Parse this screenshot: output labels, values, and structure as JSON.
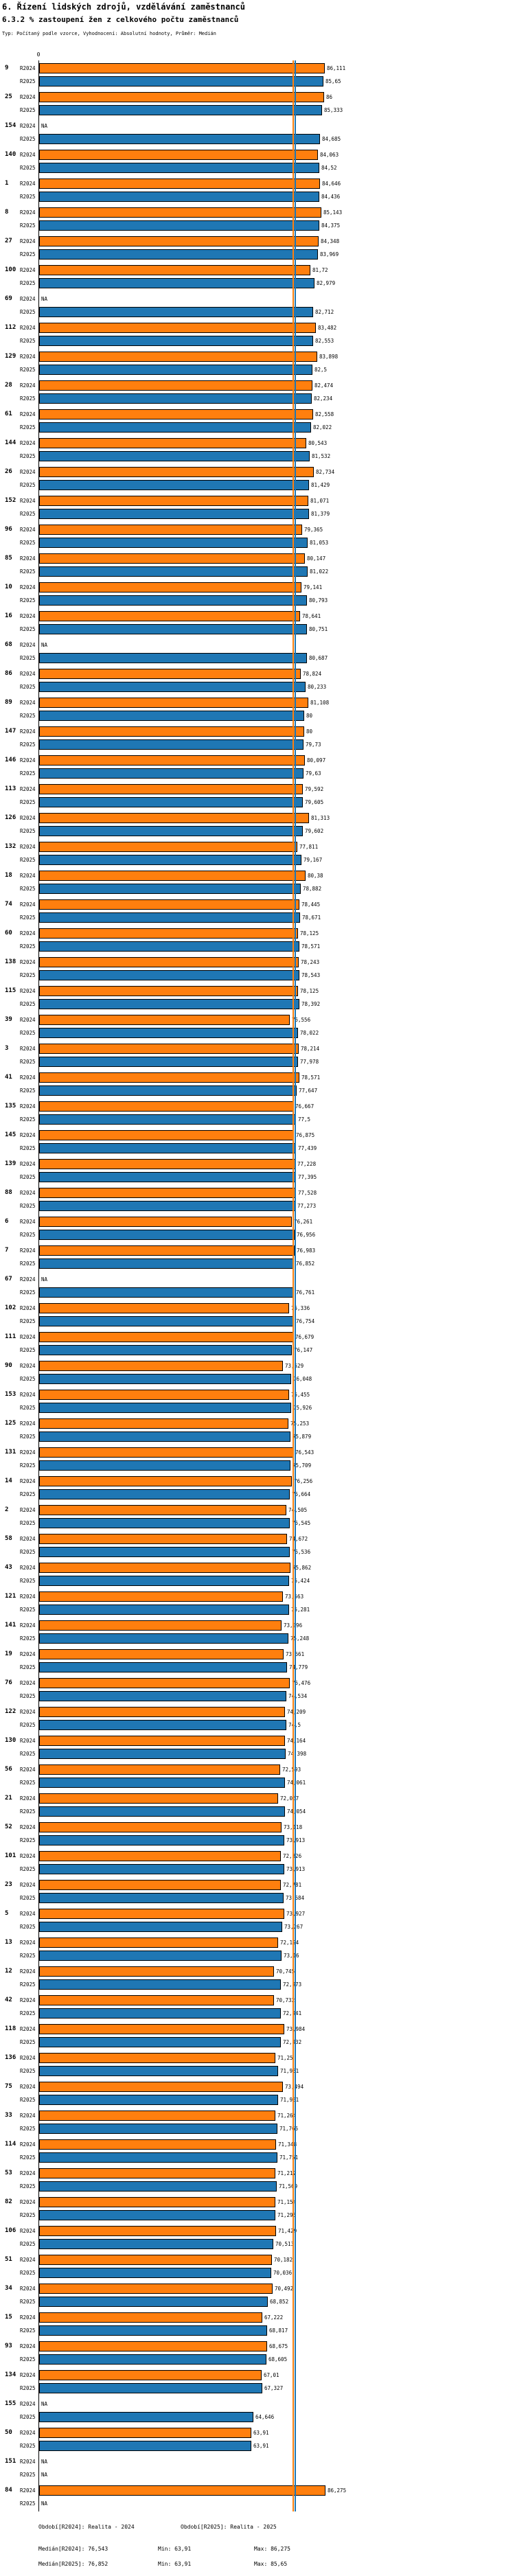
{
  "header": {
    "title": "6. Řízení lidských zdrojů, vzdělávání zaměstnanců",
    "subtitle": "6.3.2 % zastoupení žen z celkového počtu zaměstnanců",
    "meta": "Typ: Počítaný podle vzorce, Vyhodnocení: Absolutní hodnoty, Průměr: Medián"
  },
  "chart_data": {
    "type": "bar",
    "orientation": "horizontal",
    "title": "6.3.2 % zastoupení žen z celkového počtu zaměstnanců",
    "xlabel": "",
    "ylabel": "",
    "xlim": [
      0,
      88
    ],
    "axis_zero_label": "0",
    "na_label": "NA",
    "series_labels": [
      "R2024",
      "R2025"
    ],
    "colors": {
      "R2024": "#ff7f0e",
      "R2025": "#1f77b4"
    },
    "medians": {
      "R2024": 76.543,
      "R2025": 76.852
    },
    "groups": [
      {
        "id": "9",
        "r2024": "86,111",
        "r2025": "85,65"
      },
      {
        "id": "25",
        "r2024": "86",
        "r2025": "85,333"
      },
      {
        "id": "154",
        "r2024": "NA",
        "r2025": "84,685"
      },
      {
        "id": "140",
        "r2024": "84,063",
        "r2025": "84,52"
      },
      {
        "id": "1",
        "r2024": "84,646",
        "r2025": "84,436"
      },
      {
        "id": "8",
        "r2024": "85,143",
        "r2025": "84,375"
      },
      {
        "id": "27",
        "r2024": "84,348",
        "r2025": "83,969"
      },
      {
        "id": "100",
        "r2024": "81,72",
        "r2025": "82,979"
      },
      {
        "id": "69",
        "r2024": "NA",
        "r2025": "82,712"
      },
      {
        "id": "112",
        "r2024": "83,482",
        "r2025": "82,553"
      },
      {
        "id": "129",
        "r2024": "83,898",
        "r2025": "82,5"
      },
      {
        "id": "28",
        "r2024": "82,474",
        "r2025": "82,234"
      },
      {
        "id": "61",
        "r2024": "82,558",
        "r2025": "82,022"
      },
      {
        "id": "144",
        "r2024": "80,543",
        "r2025": "81,532"
      },
      {
        "id": "26",
        "r2024": "82,734",
        "r2025": "81,429"
      },
      {
        "id": "152",
        "r2024": "81,071",
        "r2025": "81,379"
      },
      {
        "id": "96",
        "r2024": "79,365",
        "r2025": "81,053"
      },
      {
        "id": "85",
        "r2024": "80,147",
        "r2025": "81,022"
      },
      {
        "id": "10",
        "r2024": "79,141",
        "r2025": "80,793"
      },
      {
        "id": "16",
        "r2024": "78,641",
        "r2025": "80,751"
      },
      {
        "id": "68",
        "r2024": "NA",
        "r2025": "80,687"
      },
      {
        "id": "86",
        "r2024": "78,824",
        "r2025": "80,233"
      },
      {
        "id": "89",
        "r2024": "81,108",
        "r2025": "80"
      },
      {
        "id": "147",
        "r2024": "80",
        "r2025": "79,73"
      },
      {
        "id": "146",
        "r2024": "80,097",
        "r2025": "79,63"
      },
      {
        "id": "113",
        "r2024": "79,592",
        "r2025": "79,605"
      },
      {
        "id": "126",
        "r2024": "81,313",
        "r2025": "79,602"
      },
      {
        "id": "132",
        "r2024": "77,811",
        "r2025": "79,167"
      },
      {
        "id": "18",
        "r2024": "80,38",
        "r2025": "78,882"
      },
      {
        "id": "74",
        "r2024": "78,445",
        "r2025": "78,671"
      },
      {
        "id": "60",
        "r2024": "78,125",
        "r2025": "78,571"
      },
      {
        "id": "138",
        "r2024": "78,243",
        "r2025": "78,543"
      },
      {
        "id": "115",
        "r2024": "78,125",
        "r2025": "78,392"
      },
      {
        "id": "39",
        "r2024": "75,556",
        "r2025": "78,022"
      },
      {
        "id": "3",
        "r2024": "78,214",
        "r2025": "77,978"
      },
      {
        "id": "41",
        "r2024": "78,571",
        "r2025": "77,647"
      },
      {
        "id": "135",
        "r2024": "76,667",
        "r2025": "77,5"
      },
      {
        "id": "145",
        "r2024": "76,875",
        "r2025": "77,439"
      },
      {
        "id": "139",
        "r2024": "77,228",
        "r2025": "77,395"
      },
      {
        "id": "88",
        "r2024": "77,528",
        "r2025": "77,273"
      },
      {
        "id": "6",
        "r2024": "76,261",
        "r2025": "76,956"
      },
      {
        "id": "7",
        "r2024": "76,983",
        "r2025": "76,852"
      },
      {
        "id": "67",
        "r2024": "NA",
        "r2025": "76,761"
      },
      {
        "id": "102",
        "r2024": "75,336",
        "r2025": "76,754"
      },
      {
        "id": "111",
        "r2024": "76,679",
        "r2025": "76,147"
      },
      {
        "id": "90",
        "r2024": "73,529",
        "r2025": "76,048"
      },
      {
        "id": "153",
        "r2024": "75,455",
        "r2025": "75,926"
      },
      {
        "id": "125",
        "r2024": "75,253",
        "r2025": "75,879"
      },
      {
        "id": "131",
        "r2024": "76,543",
        "r2025": "75,709"
      },
      {
        "id": "14",
        "r2024": "76,256",
        "r2025": "75,664"
      },
      {
        "id": "2",
        "r2024": "74,505",
        "r2025": "75,545"
      },
      {
        "id": "58",
        "r2024": "74,672",
        "r2025": "75,536"
      },
      {
        "id": "43",
        "r2024": "75,862",
        "r2025": "75,424"
      },
      {
        "id": "121",
        "r2024": "73,563",
        "r2025": "75,281"
      },
      {
        "id": "141",
        "r2024": "73,096",
        "r2025": "75,248"
      },
      {
        "id": "19",
        "r2024": "73,661",
        "r2025": "74,779"
      },
      {
        "id": "76",
        "r2024": "75,476",
        "r2025": "74,534"
      },
      {
        "id": "122",
        "r2024": "74,209",
        "r2025": "74,5"
      },
      {
        "id": "130",
        "r2024": "74,164",
        "r2025": "74,398"
      },
      {
        "id": "56",
        "r2024": "72,593",
        "r2025": "74,061"
      },
      {
        "id": "21",
        "r2024": "72,067",
        "r2025": "74,054"
      },
      {
        "id": "52",
        "r2024": "73,118",
        "r2025": "73,913"
      },
      {
        "id": "101",
        "r2024": "72,826",
        "r2025": "73,913"
      },
      {
        "id": "23",
        "r2024": "72,781",
        "r2025": "73,684"
      },
      {
        "id": "5",
        "r2024": "73,927",
        "r2025": "73,267"
      },
      {
        "id": "13",
        "r2024": "72,124",
        "r2025": "73,16"
      },
      {
        "id": "12",
        "r2024": "70,745",
        "r2025": "72,973"
      },
      {
        "id": "42",
        "r2024": "70,732",
        "r2025": "72,941"
      },
      {
        "id": "118",
        "r2024": "73,984",
        "r2025": "72,932"
      },
      {
        "id": "136",
        "r2024": "71,25",
        "r2025": "71,951"
      },
      {
        "id": "75",
        "r2024": "73,494",
        "r2025": "71,951"
      },
      {
        "id": "33",
        "r2024": "71,264",
        "r2025": "71,765"
      },
      {
        "id": "114",
        "r2024": "71,348",
        "r2025": "71,751"
      },
      {
        "id": "53",
        "r2024": "71,212",
        "r2025": "71,569"
      },
      {
        "id": "82",
        "r2024": "71,154",
        "r2025": "71,296"
      },
      {
        "id": "106",
        "r2024": "71,429",
        "r2025": "70,513"
      },
      {
        "id": "51",
        "r2024": "70,182",
        "r2025": "70,036"
      },
      {
        "id": "34",
        "r2024": "70,492",
        "r2025": "68,852"
      },
      {
        "id": "15",
        "r2024": "67,222",
        "r2025": "68,817"
      },
      {
        "id": "93",
        "r2024": "68,675",
        "r2025": "68,605"
      },
      {
        "id": "134",
        "r2024": "67,01",
        "r2025": "67,327"
      },
      {
        "id": "155",
        "r2024": "NA",
        "r2025": "64,646"
      },
      {
        "id": "50",
        "r2024": "63,91",
        "r2025": "63,91"
      },
      {
        "id": "151",
        "r2024": "NA",
        "r2025": "NA"
      },
      {
        "id": "84",
        "r2024": "86,275",
        "r2025": "NA"
      }
    ],
    "footer": {
      "legend": [
        {
          "label": "Období[R2024]: Realita - 2024"
        },
        {
          "label": "Období[R2025]: Realita - 2025"
        }
      ],
      "stats": [
        {
          "median": "Medián[R2024]: 76,543",
          "min": "Min: 63,91",
          "max": "Max: 86,275"
        },
        {
          "median": "Medián[R2025]: 76,852",
          "min": "Min: 63,91",
          "max": "Max: 85,65"
        }
      ]
    }
  }
}
